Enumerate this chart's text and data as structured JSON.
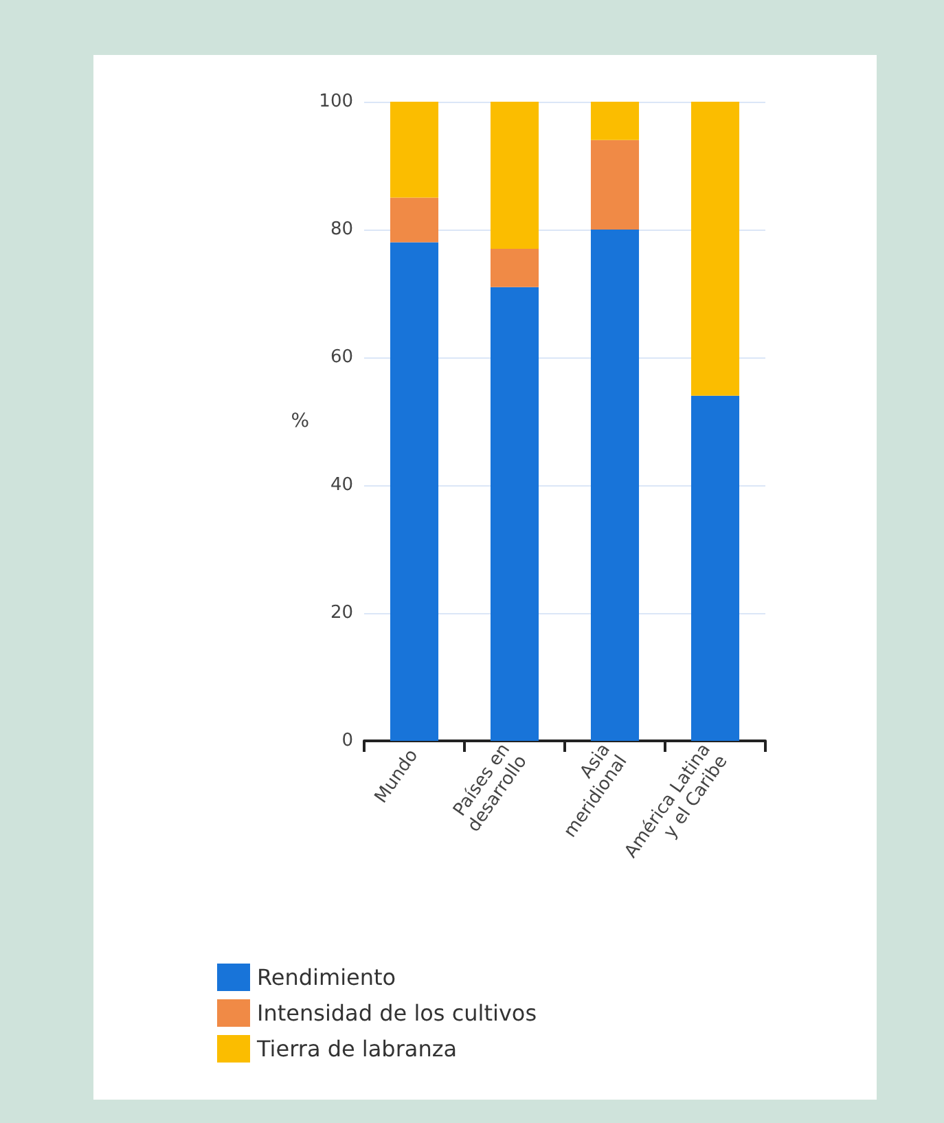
{
  "chart_data": {
    "type": "bar",
    "stacked": true,
    "ylabel": "%",
    "categories": [
      "Mundo",
      "Países en\ndesarrollo",
      "Asia\nmeridional",
      "América Latina\ny el Caribe"
    ],
    "series": [
      {
        "name": "Rendimiento",
        "color": "#1874d9",
        "values": [
          78,
          71,
          80,
          54
        ]
      },
      {
        "name": "Intensidad de los cultivos",
        "color": "#f08a46",
        "values": [
          7,
          6,
          14,
          0
        ]
      },
      {
        "name": "Tierra de labranza",
        "color": "#fbbd00",
        "values": [
          15,
          23,
          6,
          46
        ]
      }
    ],
    "ylim": [
      0,
      100
    ],
    "yticks": [
      0,
      20,
      40,
      60,
      80,
      100
    ],
    "grid": "y",
    "legend": "bottom left"
  }
}
